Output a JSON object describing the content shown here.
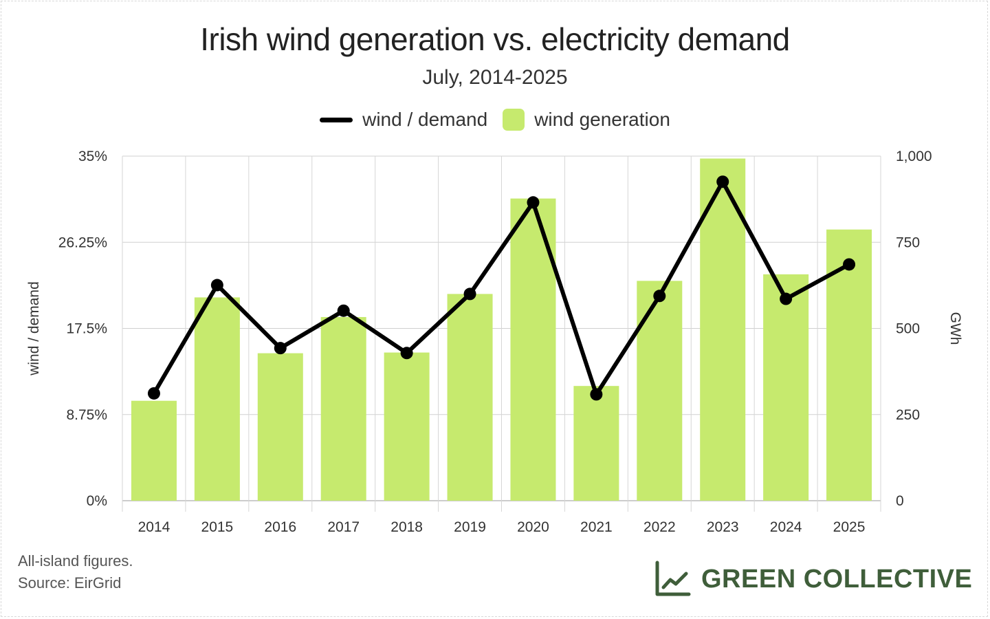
{
  "chart_data": {
    "type": "bar",
    "title": "Irish wind generation vs. electricity demand",
    "subtitle": "July, 2014-2025",
    "categories": [
      "2014",
      "2015",
      "2016",
      "2017",
      "2018",
      "2019",
      "2020",
      "2021",
      "2022",
      "2023",
      "2024",
      "2025"
    ],
    "series": [
      {
        "name": "wind generation",
        "type": "bar",
        "axis": "right",
        "color": "#c6ea6e",
        "values": [
          290,
          590,
          428,
          533,
          430,
          600,
          877,
          333,
          638,
          993,
          657,
          787
        ]
      },
      {
        "name": "wind / demand",
        "type": "line",
        "axis": "left",
        "color": "#000000",
        "values": [
          10.9,
          21.9,
          15.5,
          19.3,
          15.0,
          21.0,
          30.3,
          10.8,
          20.8,
          32.4,
          20.5,
          24.0
        ]
      }
    ],
    "y_left": {
      "label": "wind / demand",
      "range": [
        0,
        35
      ],
      "ticks": [
        0,
        8.75,
        17.5,
        26.25,
        35
      ],
      "tick_labels": [
        "0%",
        "8.75%",
        "17.5%",
        "26.25%",
        "35%"
      ]
    },
    "y_right": {
      "label": "GWh",
      "range": [
        0,
        1000
      ],
      "ticks": [
        0,
        250,
        500,
        750,
        1000
      ],
      "tick_labels": [
        "0",
        "250",
        "500",
        "750",
        "1,000"
      ]
    },
    "grid": true,
    "legend": "top-center"
  },
  "legend": {
    "line_label": "wind / demand",
    "bar_label": "wind generation"
  },
  "footnote": {
    "line1": "All-island figures.",
    "line2": "Source: EirGrid"
  },
  "brand": {
    "name": "GREEN COLLECTIVE",
    "icon": "line-chart-icon",
    "color": "#3f5e3a"
  }
}
